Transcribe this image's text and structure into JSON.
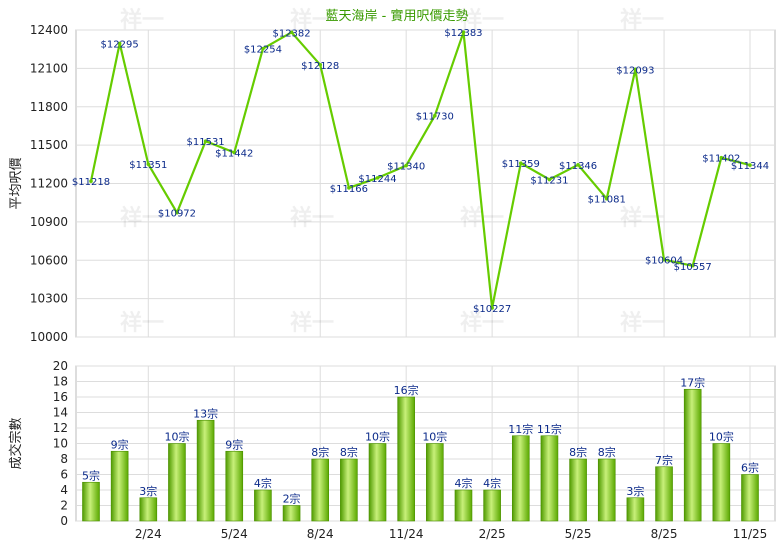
{
  "chart_data": [
    {
      "type": "line",
      "title": "藍天海岸 - 實用呎價走勢",
      "ylabel": "平均呎價",
      "ylim": [
        10000,
        12400
      ],
      "yticks": [
        "10000",
        "10300",
        "10600",
        "10900",
        "11200",
        "11500",
        "11800",
        "12100",
        "12400"
      ],
      "x": [
        "",
        "",
        "2/24",
        "",
        "",
        "5/24",
        "",
        "",
        "8/24",
        "",
        "",
        "11/24",
        "",
        "",
        "2/25",
        "",
        "",
        "5/25",
        "",
        "",
        "8/25",
        "",
        "",
        "11/25"
      ],
      "series": [
        {
          "color": "#66cc00",
          "values": [
            11218,
            12295,
            11351,
            10972,
            11531,
            11442,
            12254,
            12382,
            12128,
            11166,
            11244,
            11340,
            11730,
            12383,
            10227,
            11359,
            11231,
            11346,
            11081,
            12093,
            10604,
            10557,
            11402,
            11344
          ],
          "labels": [
            "$11218",
            "$12295",
            "$11351",
            "$10972",
            "$11531",
            "$11442",
            "$12254",
            "$12382",
            "$12128",
            "$11166",
            "$11244",
            "$11340",
            "$11730",
            "$12383",
            "$10227",
            "$11359",
            "$11231",
            "$11346",
            "$11081",
            "$12093",
            "$10604",
            "$10557",
            "$11402",
            "$11344"
          ]
        }
      ],
      "grid": true
    },
    {
      "type": "bar",
      "ylabel": "成交宗數",
      "ylim": [
        0,
        20
      ],
      "yticks": [
        "0",
        "2",
        "4",
        "6",
        "8",
        "10",
        "12",
        "14",
        "16",
        "18",
        "20"
      ],
      "categories": [
        "",
        "",
        "2/24",
        "",
        "",
        "5/24",
        "",
        "",
        "8/24",
        "",
        "",
        "11/24",
        "",
        "",
        "2/25",
        "",
        "",
        "5/25",
        "",
        "",
        "8/25",
        "",
        "",
        "11/25"
      ],
      "series": [
        {
          "color": "#66bb00",
          "values": [
            5,
            9,
            3,
            10,
            13,
            9,
            4,
            2,
            8,
            8,
            10,
            16,
            10,
            4,
            4,
            11,
            11,
            8,
            8,
            3,
            7,
            17,
            10,
            6
          ],
          "labels": [
            "5宗",
            "9宗",
            "3宗",
            "10宗",
            "13宗",
            "9宗",
            "4宗",
            "2宗",
            "8宗",
            "8宗",
            "10宗",
            "16宗",
            "10宗",
            "4宗",
            "4宗",
            "11宗",
            "11宗",
            "8宗",
            "8宗",
            "3宗",
            "7宗",
            "17宗",
            "10宗",
            "6宗"
          ]
        }
      ],
      "grid": true
    }
  ],
  "watermark": "祥一"
}
